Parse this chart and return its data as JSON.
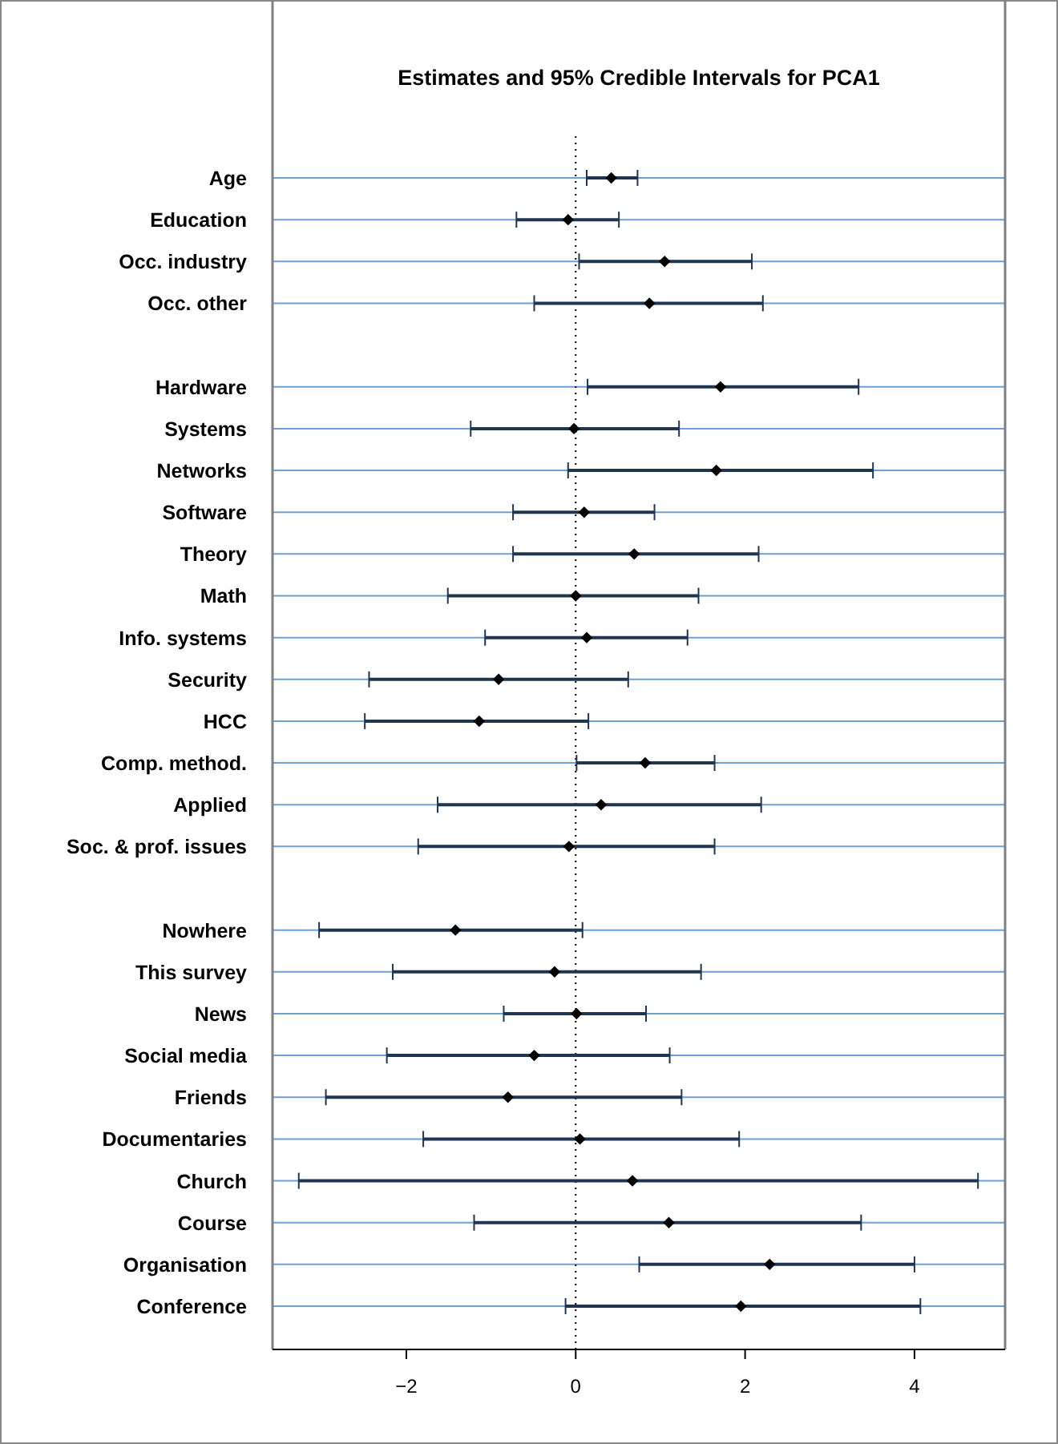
{
  "chart_data": {
    "type": "scatter",
    "orientation": "horizontal",
    "title": "Estimates and 95% Credible Intervals for PCA1",
    "categories": [
      "Age",
      "Education",
      "Occ. industry",
      "Occ. other",
      null,
      "Hardware",
      "Systems",
      "Networks",
      "Software",
      "Theory",
      "Math",
      "Info. systems",
      "Security",
      "HCC",
      "Comp. method.",
      "Applied",
      "Soc. & prof. issues",
      null,
      "Nowhere",
      "This survey",
      "News",
      "Social media",
      "Friends",
      "Documentaries",
      "Church",
      "Course",
      "Organisation",
      "Conference"
    ],
    "series": [
      {
        "color": "#000000",
        "values": [
          0.42,
          -0.09,
          1.05,
          0.87,
          null,
          1.71,
          -0.02,
          1.66,
          0.1,
          0.69,
          0.0,
          0.13,
          -0.91,
          -1.14,
          0.82,
          0.3,
          -0.08,
          null,
          -1.42,
          -0.25,
          0.01,
          -0.49,
          -0.8,
          0.05,
          0.67,
          1.1,
          2.29,
          1.95
        ],
        "errors": [
          [
            0.13,
            0.73
          ],
          [
            -0.7,
            0.51
          ],
          [
            0.04,
            2.08
          ],
          [
            -0.49,
            2.21
          ],
          null,
          [
            0.14,
            3.34
          ],
          [
            -1.24,
            1.22
          ],
          [
            -0.09,
            3.51
          ],
          [
            -0.74,
            0.93
          ],
          [
            -0.74,
            2.16
          ],
          [
            -1.51,
            1.45
          ],
          [
            -1.07,
            1.32
          ],
          [
            -2.44,
            0.62
          ],
          [
            -2.49,
            0.15
          ],
          [
            0.01,
            1.64
          ],
          [
            -1.63,
            2.19
          ],
          [
            -1.86,
            1.64
          ],
          null,
          [
            -3.03,
            0.08
          ],
          [
            -2.16,
            1.48
          ],
          [
            -0.85,
            0.83
          ],
          [
            -2.23,
            1.11
          ],
          [
            -2.95,
            1.25
          ],
          [
            -1.8,
            1.93
          ],
          [
            -3.27,
            4.75
          ],
          [
            -1.2,
            3.37
          ],
          [
            0.75,
            4.0
          ],
          [
            -0.12,
            4.07
          ]
        ]
      }
    ],
    "xlim": [
      -3.58,
      5.07
    ],
    "xticks": [
      {
        "value": -2,
        "label": "−2"
      },
      0,
      2,
      4
    ],
    "grid": "y",
    "marker": "diamond",
    "ref_lines": [
      {
        "axis": "x",
        "value": 0,
        "color": "#000000",
        "line_style": "dotted"
      }
    ]
  }
}
